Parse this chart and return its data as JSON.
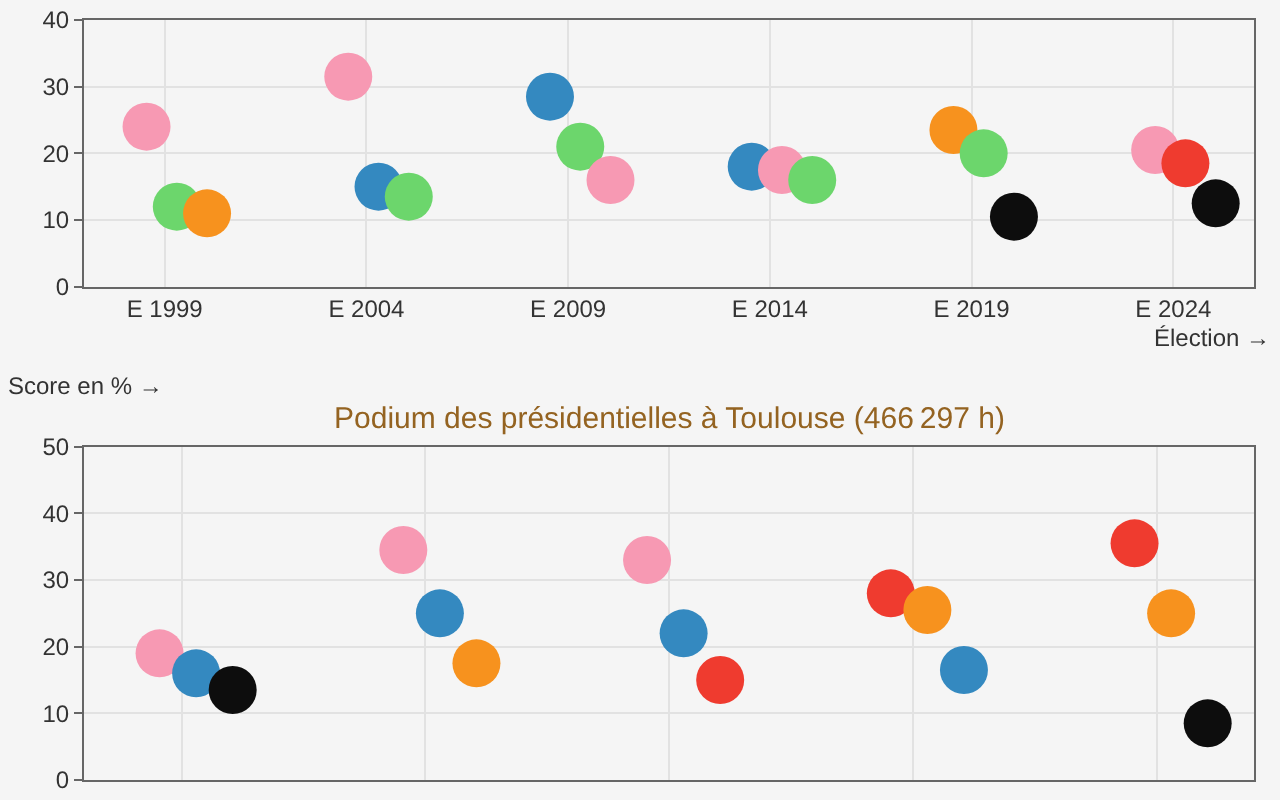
{
  "chart_data": [
    {
      "type": "scatter",
      "categories": [
        "E 1999",
        "E 2004",
        "E 2009",
        "E 2014",
        "E 2019",
        "E 2024"
      ],
      "xlabel": "Élection →",
      "ylim": [
        0,
        40
      ],
      "yticks": [
        0,
        10,
        20,
        30,
        40
      ],
      "grid": true,
      "marker": "circle",
      "series": [
        {
          "colors": [
            "#f799b3",
            "#f799b3",
            "#3489c0",
            "#3489c0",
            "#f7921e",
            "#f799b3"
          ],
          "values": [
            24,
            31.5,
            28.5,
            18,
            23.5,
            20.5
          ]
        },
        {
          "colors": [
            "#6cd66c",
            "#3489c0",
            "#6cd66c",
            "#f799b3",
            "#6cd66c",
            "#ef3b2f"
          ],
          "values": [
            12,
            15,
            21,
            17.5,
            20,
            18.5
          ]
        },
        {
          "colors": [
            "#f7921e",
            "#6cd66c",
            "#f799b3",
            "#6cd66c",
            "#0d0d0d",
            "#0d0d0d"
          ],
          "values": [
            11,
            13.5,
            16,
            16,
            10.5,
            12.5
          ]
        }
      ]
    },
    {
      "type": "scatter",
      "title": "Podium des présidentielles à Toulouse (466 297 h)",
      "ylabel": "Score en % →",
      "categories": [
        null,
        null,
        null,
        null,
        null
      ],
      "ylim": [
        0,
        50
      ],
      "yticks": [
        0,
        10,
        20,
        30,
        40,
        50
      ],
      "grid": true,
      "marker": "circle",
      "tick_labels": "y",
      "series": [
        {
          "colors": [
            "#f799b3",
            "#f799b3",
            "#f799b3",
            "#ef3b2f",
            "#ef3b2f"
          ],
          "values": [
            19,
            34.5,
            33,
            28,
            35.5
          ]
        },
        {
          "colors": [
            "#3489c0",
            "#3489c0",
            "#3489c0",
            "#f7921e",
            "#f7921e"
          ],
          "values": [
            16,
            25,
            22,
            25.5,
            25
          ]
        },
        {
          "colors": [
            "#0d0d0d",
            "#f7921e",
            "#ef3b2f",
            "#3489c0",
            "#0d0d0d"
          ],
          "values": [
            13.5,
            17.5,
            15,
            16.5,
            8.5
          ]
        }
      ]
    }
  ]
}
